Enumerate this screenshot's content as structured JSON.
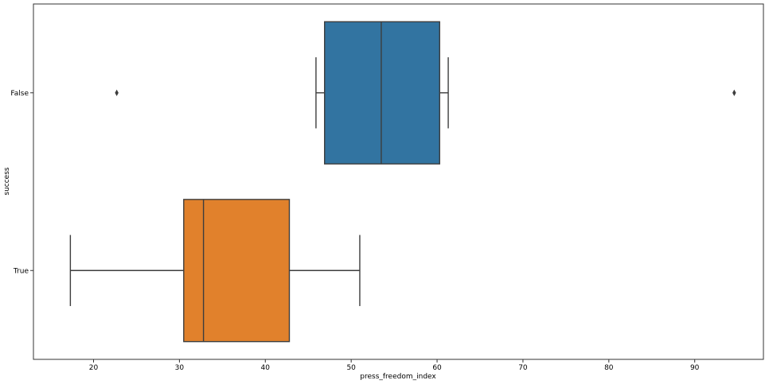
{
  "chart_data": {
    "type": "box",
    "orientation": "horizontal",
    "xlabel": "press_freedom_index",
    "ylabel": "success",
    "xlim": [
      13,
      98
    ],
    "x_ticks": [
      20,
      30,
      40,
      50,
      60,
      70,
      80,
      90
    ],
    "x_tick_labels": [
      "20",
      "30",
      "40",
      "50",
      "60",
      "70",
      "80",
      "90"
    ],
    "categories": [
      "False",
      "True"
    ],
    "series": [
      {
        "category": "False",
        "whisker_low": 45.9,
        "q1": 46.9,
        "median": 53.5,
        "q3": 60.3,
        "whisker_high": 61.3,
        "outliers": [
          22.7,
          94.6
        ],
        "color": "#3274a1"
      },
      {
        "category": "True",
        "whisker_low": 17.3,
        "q1": 30.5,
        "median": 32.8,
        "q3": 42.8,
        "whisker_high": 51.0,
        "outliers": [],
        "color": "#e1812c"
      }
    ],
    "grid": false,
    "legend": "none"
  }
}
